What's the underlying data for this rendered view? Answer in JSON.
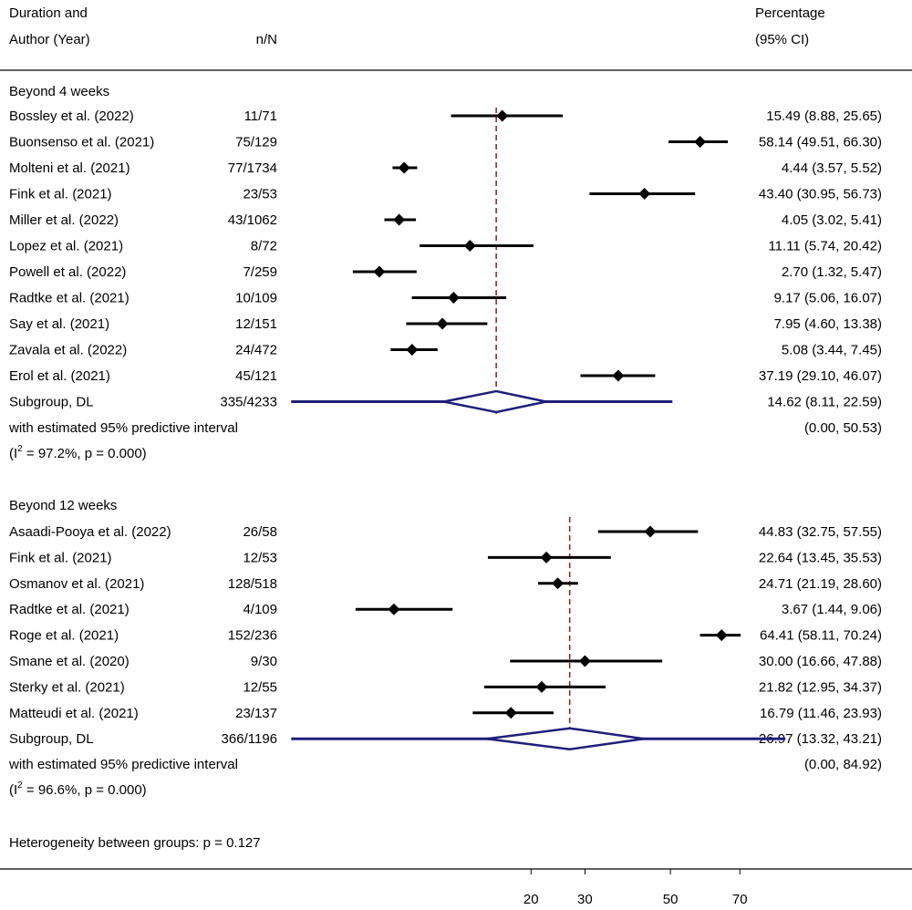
{
  "header": {
    "col1_line1": "Duration and",
    "col1_line2": "Author (Year)",
    "col2": "n/N",
    "col3_line1": "Percentage",
    "col3_line2": "(95% CI)"
  },
  "chart_data": {
    "type": "forest",
    "x_ticks": [
      "20",
      "30",
      "50",
      "70"
    ],
    "x_tick_values": [
      20,
      30,
      50,
      70
    ],
    "subgroups": [
      {
        "label": "Beyond 4 weeks",
        "studies": [
          {
            "author": "Bossley et al. (2022)",
            "nN": "11/71",
            "est": 15.49,
            "lo": 8.88,
            "hi": 25.65,
            "ci": "15.49 (8.88, 25.65)"
          },
          {
            "author": "Buonsenso et al. (2021)",
            "nN": "75/129",
            "est": 58.14,
            "lo": 49.51,
            "hi": 66.3,
            "ci": "58.14 (49.51, 66.30)"
          },
          {
            "author": "Molteni et al. (2021)",
            "nN": "77/1734",
            "est": 4.44,
            "lo": 3.57,
            "hi": 5.52,
            "ci": "4.44 (3.57, 5.52)"
          },
          {
            "author": "Fink et al. (2021)",
            "nN": "23/53",
            "est": 43.4,
            "lo": 30.95,
            "hi": 56.73,
            "ci": "43.40 (30.95, 56.73)"
          },
          {
            "author": "Miller et al. (2022)",
            "nN": "43/1062",
            "est": 4.05,
            "lo": 3.02,
            "hi": 5.41,
            "ci": "4.05 (3.02, 5.41)"
          },
          {
            "author": "Lopez et al. (2021)",
            "nN": "8/72",
            "est": 11.11,
            "lo": 5.74,
            "hi": 20.42,
            "ci": "11.11 (5.74, 20.42)"
          },
          {
            "author": "Powell et al. (2022)",
            "nN": "7/259",
            "est": 2.7,
            "lo": 1.32,
            "hi": 5.47,
            "ci": "2.70 (1.32, 5.47)"
          },
          {
            "author": "Radtke et al. (2021)",
            "nN": "10/109",
            "est": 9.17,
            "lo": 5.06,
            "hi": 16.07,
            "ci": "9.17 (5.06, 16.07)"
          },
          {
            "author": "Say et al. (2021)",
            "nN": "12/151",
            "est": 7.95,
            "lo": 4.6,
            "hi": 13.38,
            "ci": "7.95 (4.60, 13.38)"
          },
          {
            "author": "Zavala et al. (2022)",
            "nN": "24/472",
            "est": 5.08,
            "lo": 3.44,
            "hi": 7.45,
            "ci": "5.08 (3.44, 7.45)"
          },
          {
            "author": "Erol et al. (2021)",
            "nN": "45/121",
            "est": 37.19,
            "lo": 29.1,
            "hi": 46.07,
            "ci": "37.19 (29.10, 46.07)"
          }
        ],
        "summary": {
          "label": "Subgroup, DL",
          "nN": "335/4233",
          "est": 14.62,
          "lo": 8.11,
          "hi": 22.59,
          "ci": "14.62 (8.11, 22.59)"
        },
        "pi_label": "with estimated 95% predictive interval",
        "pi": {
          "lo": 0.0,
          "hi": 50.53,
          "text": "(0.00, 50.53)"
        },
        "het_prefix": "(I",
        "het_sup": "2",
        "het_suffix": " = 97.2%, p = 0.000)"
      },
      {
        "label": "Beyond 12 weeks",
        "studies": [
          {
            "author": "Asaadi-Pooya et al. (2022)",
            "nN": "26/58",
            "est": 44.83,
            "lo": 32.75,
            "hi": 57.55,
            "ci": "44.83 (32.75, 57.55)"
          },
          {
            "author": "Fink et al. (2021)",
            "nN": "12/53",
            "est": 22.64,
            "lo": 13.45,
            "hi": 35.53,
            "ci": "22.64 (13.45, 35.53)"
          },
          {
            "author": "Osmanov et al. (2021)",
            "nN": "128/518",
            "est": 24.71,
            "lo": 21.19,
            "hi": 28.6,
            "ci": "24.71 (21.19, 28.60)"
          },
          {
            "author": "Radtke et al. (2021)",
            "nN": "4/109",
            "est": 3.67,
            "lo": 1.44,
            "hi": 9.06,
            "ci": "3.67 (1.44, 9.06)"
          },
          {
            "author": "Roge et al. (2021)",
            "nN": "152/236",
            "est": 64.41,
            "lo": 58.11,
            "hi": 70.24,
            "ci": "64.41 (58.11, 70.24)"
          },
          {
            "author": "Smane et al. (2020)",
            "nN": "9/30",
            "est": 30.0,
            "lo": 16.66,
            "hi": 47.88,
            "ci": "30.00 (16.66, 47.88)"
          },
          {
            "author": "Sterky et al. (2021)",
            "nN": "12/55",
            "est": 21.82,
            "lo": 12.95,
            "hi": 34.37,
            "ci": "21.82 (12.95, 34.37)"
          },
          {
            "author": "Matteudi et al. (2021)",
            "nN": "23/137",
            "est": 16.79,
            "lo": 11.46,
            "hi": 23.93,
            "ci": "16.79 (11.46, 23.93)"
          }
        ],
        "summary": {
          "label": "Subgroup, DL",
          "nN": "366/1196",
          "est": 26.97,
          "lo": 13.32,
          "hi": 43.21,
          "ci": "26.97 (13.32, 43.21)"
        },
        "pi_label": "with estimated 95% predictive interval",
        "pi": {
          "lo": 0.0,
          "hi": 84.92,
          "text": "(0.00, 84.92)"
        },
        "het_prefix": "(I",
        "het_sup": "2",
        "het_suffix": " = 96.6%, p = 0.000)"
      }
    ],
    "footer": "Heterogeneity between groups: p = 0.127",
    "colors": {
      "ci_line": "#000000",
      "marker": "#000000",
      "summary": "#1f1f7a",
      "ref_line": "#8b2a2a"
    }
  }
}
